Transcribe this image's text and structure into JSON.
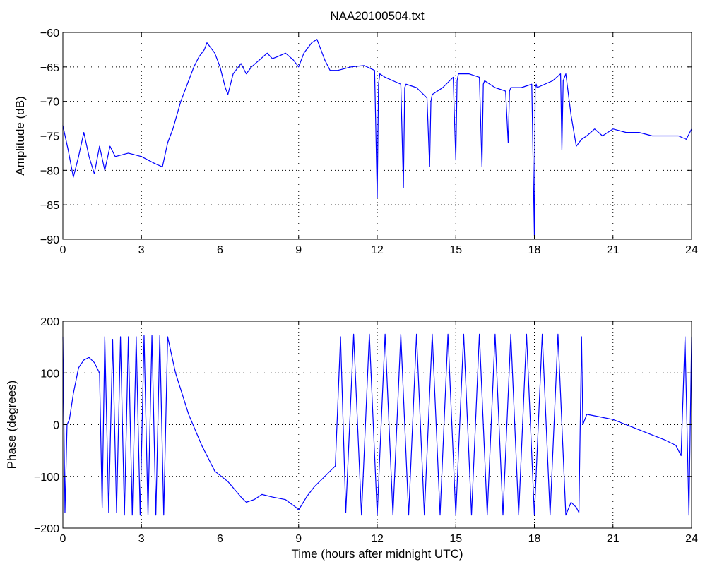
{
  "figure": {
    "title": "NAA20100504.txt"
  },
  "chart_data": [
    {
      "type": "line",
      "title": "NAA20100504.txt",
      "xlabel": "",
      "ylabel": "Amplitude (dB)",
      "xlim": [
        0,
        24
      ],
      "ylim": [
        -90,
        -60
      ],
      "xticks": [
        0,
        3,
        6,
        9,
        12,
        15,
        18,
        21,
        24
      ],
      "yticks": [
        -90,
        -85,
        -80,
        -75,
        -70,
        -65,
        -60
      ],
      "xtick_labels": [
        "0",
        "3",
        "6",
        "9",
        "12",
        "15",
        "18",
        "21",
        "24"
      ],
      "ytick_labels": [
        "−90",
        "−85",
        "−80",
        "−75",
        "−70",
        "−65",
        "−60"
      ],
      "grid": true,
      "series": [
        {
          "color": "#0000ff",
          "x": [
            0,
            0.2,
            0.4,
            0.6,
            0.8,
            1.0,
            1.2,
            1.4,
            1.6,
            1.8,
            2.0,
            2.5,
            3.0,
            3.5,
            3.8,
            4.0,
            4.2,
            4.5,
            4.8,
            5.0,
            5.2,
            5.4,
            5.5,
            5.6,
            5.8,
            6.0,
            6.2,
            6.3,
            6.5,
            6.8,
            7.0,
            7.2,
            7.5,
            7.8,
            8.0,
            8.2,
            8.5,
            8.8,
            9.0,
            9.2,
            9.5,
            9.7,
            10.0,
            10.2,
            10.5,
            11.0,
            11.5,
            11.9,
            12.0,
            12.05,
            12.1,
            12.3,
            12.6,
            12.9,
            13.0,
            13.05,
            13.1,
            13.5,
            13.9,
            14.0,
            14.05,
            14.1,
            14.5,
            14.9,
            15.0,
            15.05,
            15.1,
            15.5,
            15.9,
            16.0,
            16.05,
            16.1,
            16.5,
            16.9,
            17.0,
            17.05,
            17.1,
            17.5,
            17.9,
            18.0,
            18.03,
            18.07,
            18.1,
            18.4,
            18.7,
            19.0,
            19.05,
            19.1,
            19.2,
            19.4,
            19.6,
            19.8,
            20.0,
            20.3,
            20.6,
            21.0,
            21.5,
            22.0,
            22.5,
            23.0,
            23.5,
            23.8,
            24.0
          ],
          "y": [
            -73.5,
            -77,
            -81,
            -78,
            -74.5,
            -78,
            -80.5,
            -76.5,
            -80,
            -76.5,
            -78,
            -77.5,
            -78,
            -79,
            -79.5,
            -76,
            -74,
            -70,
            -67,
            -65,
            -63.5,
            -62.5,
            -61.5,
            -62,
            -63,
            -65,
            -68,
            -69,
            -66,
            -64.5,
            -66,
            -65,
            -64,
            -63,
            -63.8,
            -63.5,
            -63,
            -64,
            -65,
            -63,
            -61.5,
            -61,
            -64,
            -65.5,
            -65.5,
            -65,
            -64.8,
            -65.5,
            -84,
            -67.5,
            -66,
            -66.5,
            -67,
            -67.5,
            -82.5,
            -68,
            -67.5,
            -68,
            -69.5,
            -79.5,
            -70,
            -69,
            -68,
            -66.5,
            -78.5,
            -67,
            -66,
            -66,
            -66.5,
            -79.5,
            -67.5,
            -67,
            -68,
            -68.5,
            -76,
            -68.5,
            -68,
            -68,
            -67.5,
            -89.5,
            -68,
            -67.5,
            -68,
            -67.5,
            -67,
            -66,
            -77,
            -67,
            -66,
            -72,
            -76.5,
            -75.5,
            -75,
            -74,
            -75,
            -74,
            -74.5,
            -74.5,
            -75,
            -75,
            -75,
            -75.5,
            -74
          ]
        }
      ]
    },
    {
      "type": "line",
      "title": "",
      "xlabel": "Time (hours after midnight UTC)",
      "ylabel": "Phase (degrees)",
      "xlim": [
        0,
        24
      ],
      "ylim": [
        -200,
        200
      ],
      "xticks": [
        0,
        3,
        6,
        9,
        12,
        15,
        18,
        21,
        24
      ],
      "yticks": [
        -200,
        -100,
        0,
        100,
        200
      ],
      "xtick_labels": [
        "0",
        "3",
        "6",
        "9",
        "12",
        "15",
        "18",
        "21",
        "24"
      ],
      "ytick_labels": [
        "−200",
        "−100",
        "0",
        "100",
        "200"
      ],
      "grid": true,
      "series": [
        {
          "color": "#0000ff",
          "x": [
            0,
            0.08,
            0.16,
            0.25,
            0.4,
            0.6,
            0.8,
            1.0,
            1.2,
            1.4,
            1.5,
            1.6,
            1.75,
            1.9,
            2.05,
            2.2,
            2.35,
            2.5,
            2.65,
            2.8,
            2.95,
            3.1,
            3.25,
            3.4,
            3.55,
            3.7,
            3.85,
            4.0,
            4.3,
            4.8,
            5.3,
            5.8,
            6.3,
            6.8,
            7.0,
            7.3,
            7.6,
            8.0,
            8.5,
            8.9,
            9.0,
            9.3,
            9.6,
            10.0,
            10.4,
            10.6,
            10.8,
            11.1,
            11.4,
            11.7,
            12.0,
            12.3,
            12.6,
            12.9,
            13.2,
            13.5,
            13.8,
            14.1,
            14.4,
            14.7,
            15.0,
            15.3,
            15.6,
            15.9,
            16.2,
            16.5,
            16.8,
            17.1,
            17.4,
            17.7,
            18.0,
            18.3,
            18.6,
            18.9,
            19.2,
            19.4,
            19.6,
            19.7,
            19.8,
            19.85,
            20.0,
            20.5,
            21.0,
            21.5,
            22.0,
            22.5,
            23.0,
            23.4,
            23.6,
            23.75,
            23.9,
            24.0
          ],
          "y": [
            170,
            -170,
            0,
            10,
            60,
            110,
            125,
            130,
            120,
            100,
            -160,
            170,
            -170,
            165,
            -170,
            170,
            -175,
            170,
            -175,
            170,
            -175,
            172,
            -175,
            172,
            -175,
            172,
            -175,
            170,
            100,
            20,
            -40,
            -90,
            -110,
            -140,
            -150,
            -145,
            -135,
            -140,
            -145,
            -160,
            -165,
            -140,
            -120,
            -100,
            -80,
            170,
            -170,
            175,
            -175,
            175,
            -175,
            175,
            -175,
            175,
            -175,
            175,
            -175,
            175,
            -175,
            175,
            -175,
            175,
            -175,
            175,
            -175,
            175,
            -175,
            175,
            -175,
            175,
            -175,
            175,
            -175,
            175,
            -175,
            -150,
            -160,
            -170,
            170,
            0,
            20,
            15,
            10,
            0,
            -10,
            -20,
            -30,
            -40,
            -60,
            170,
            -175,
            170
          ]
        }
      ]
    }
  ]
}
